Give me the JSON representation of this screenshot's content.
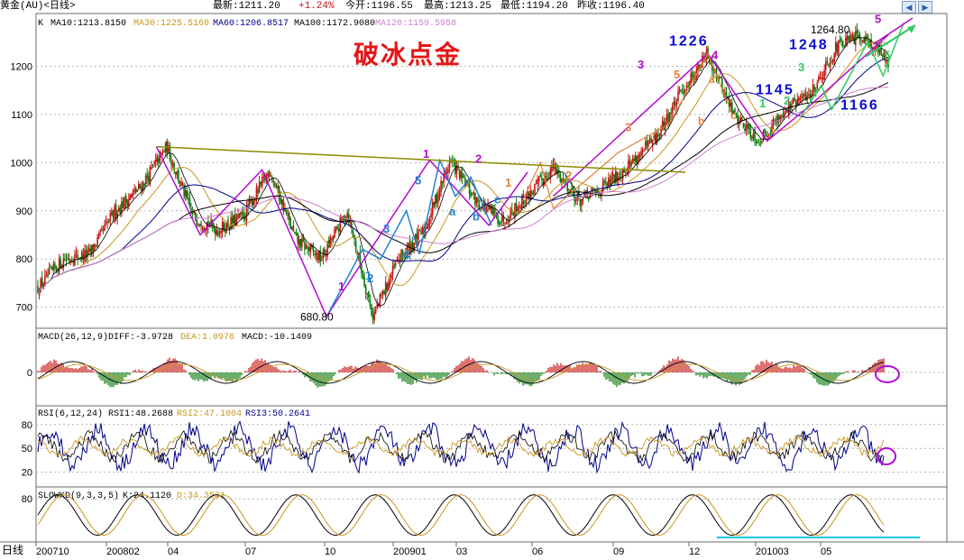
{
  "header": {
    "symbol": "黄金(AU)<日线>",
    "latest": "最新:1211.20",
    "change": "+1.24%",
    "open": "今开:1196.55",
    "high": "最高:1213.25",
    "low": "最低:1194.20",
    "prev_close": "昨收:1196.40"
  },
  "toolbar": {
    "left_icon": "arrow-left-icon",
    "right_icon": "arrow-right-icon"
  },
  "colors": {
    "candle_up": "#c81414",
    "candle_down": "#0a7a0a",
    "ma10": "#000000",
    "ma30": "#c8961e",
    "ma60": "#00008b",
    "ma100": "#000000",
    "ma120": "#d080d0",
    "wave_purple": "#b40ad2",
    "wave_blue": "#1e82d2",
    "wave_orange": "#e68232",
    "wave_green": "#32c864",
    "trendline_olive": "#8c8c00",
    "title_red": "#e61414",
    "cyan_line": "#00c8e6"
  },
  "chart_data": [
    {
      "type": "candlestick",
      "panel": "K",
      "legend": [
        "K",
        "MA10:1213.8150",
        "MA30:1225.5160",
        "MA60:1206.8517",
        "MA100:1172.9080",
        "MA120:1159.5958"
      ],
      "annotation_title": "破冰点金",
      "ylim": [
        660,
        1300
      ],
      "yticks": [
        700,
        800,
        900,
        1000,
        1100,
        1200
      ],
      "x_ticks": [
        "200710",
        "200802",
        "04",
        "07",
        "10",
        "200901",
        "03",
        "06",
        "09",
        "12",
        "201003",
        "05"
      ],
      "x_period_label": "日线",
      "low_label": "680.80",
      "high_labels": [
        "1226",
        "1264.80",
        "1248",
        "1145",
        "1166"
      ],
      "wave_labels": {
        "purple": [
          "1",
          "1",
          "2",
          "3",
          "4",
          "5"
        ],
        "blue": [
          "1",
          "2",
          "3",
          "4",
          "5",
          "a",
          "b",
          "c"
        ],
        "orange": [
          "1",
          "2",
          "3",
          "5",
          "a",
          "b",
          "c"
        ],
        "green": [
          "1",
          "2",
          "3",
          "5"
        ]
      },
      "price_path": [
        {
          "t": "2007-10",
          "v": 740
        },
        {
          "t": "2007-11",
          "v": 800
        },
        {
          "t": "2007-12",
          "v": 810
        },
        {
          "t": "2008-01",
          "v": 900
        },
        {
          "t": "2008-02",
          "v": 950
        },
        {
          "t": "2008-03",
          "v": 1033
        },
        {
          "t": "2008-04",
          "v": 890
        },
        {
          "t": "2008-05",
          "v": 860
        },
        {
          "t": "2008-06",
          "v": 890
        },
        {
          "t": "2008-07",
          "v": 985
        },
        {
          "t": "2008-08",
          "v": 840
        },
        {
          "t": "2008-09",
          "v": 800
        },
        {
          "t": "2008-10",
          "v": 900
        },
        {
          "t": "2008-11",
          "v": 681
        },
        {
          "t": "2008-12",
          "v": 800
        },
        {
          "t": "2009-01",
          "v": 860
        },
        {
          "t": "2009-02",
          "v": 1005
        },
        {
          "t": "2009-03",
          "v": 920
        },
        {
          "t": "2009-04",
          "v": 880
        },
        {
          "t": "2009-05",
          "v": 930
        },
        {
          "t": "2009-06",
          "v": 990
        },
        {
          "t": "2009-07",
          "v": 920
        },
        {
          "t": "2009-08",
          "v": 950
        },
        {
          "t": "2009-09",
          "v": 1000
        },
        {
          "t": "2009-10",
          "v": 1050
        },
        {
          "t": "2009-11",
          "v": 1150
        },
        {
          "t": "2009-12",
          "v": 1226
        },
        {
          "t": "2010-01",
          "v": 1100
        },
        {
          "t": "2010-02",
          "v": 1045
        },
        {
          "t": "2010-03",
          "v": 1110
        },
        {
          "t": "2010-04",
          "v": 1145
        },
        {
          "t": "2010-05",
          "v": 1240
        },
        {
          "t": "2010-06",
          "v": 1265
        },
        {
          "t": "2010-07",
          "v": 1211
        }
      ]
    },
    {
      "type": "macd",
      "legend": [
        "MACD(26,12,9)",
        "DIFF:-3.9728",
        "DEA:1.0976",
        "MACD:-10.1409"
      ],
      "yticks": [
        0
      ]
    },
    {
      "type": "line",
      "legend": [
        "RSI(6,12,24)",
        "RSI1:48.2688",
        "RSI2:47.1004",
        "RSI3:50.2641"
      ],
      "yticks": [
        80,
        50,
        20
      ]
    },
    {
      "type": "line",
      "legend": [
        "SLOWKD(9,3,3,5)",
        "K:24.1120",
        "D:34.3531"
      ],
      "yticks": [
        80
      ]
    }
  ]
}
